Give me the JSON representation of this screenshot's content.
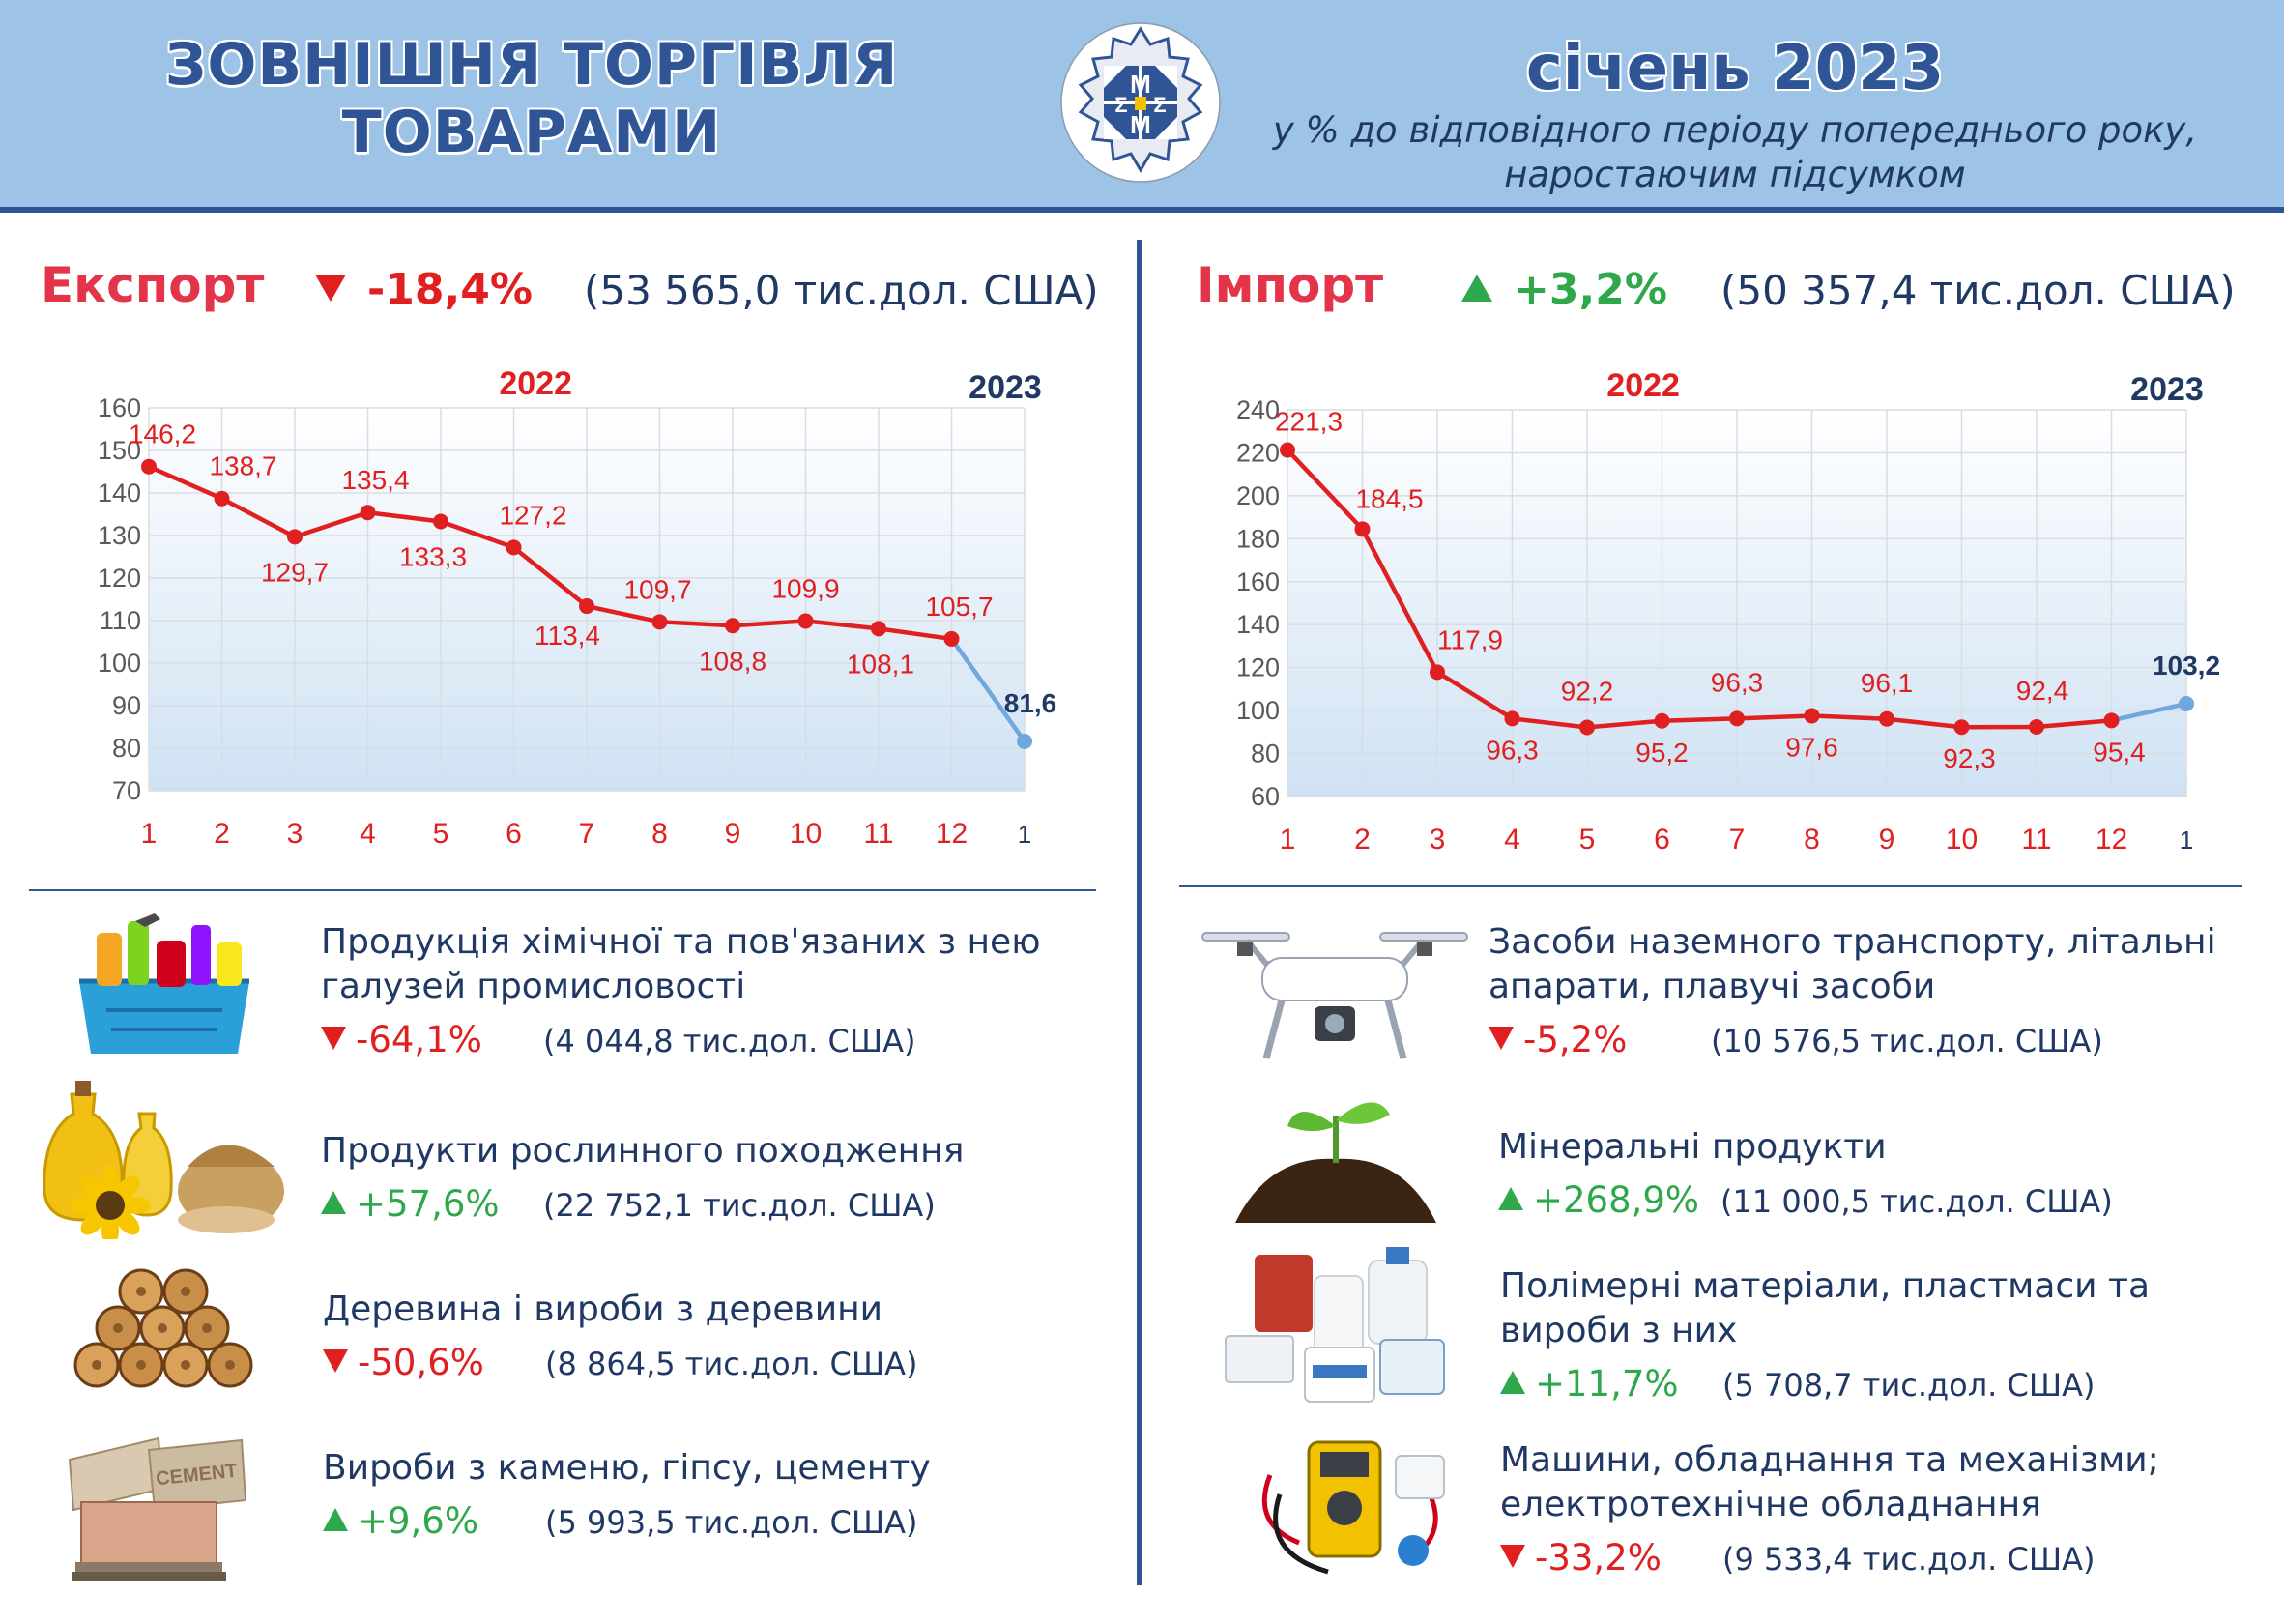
{
  "header": {
    "title_line1": "ЗОВНІШНЯ ТОРГІВЛЯ",
    "title_line2": "ТОВАРАМИ",
    "period": "січень 2023",
    "subtitle_line1": "у % до відповідного періоду попереднього року,",
    "subtitle_line2": "наростаючим підсумком",
    "logo_letters": [
      "М",
      "Σ",
      "Σ",
      "М"
    ],
    "colors": {
      "band": "#9dc3e6",
      "title": "#2f5597",
      "rule": "#2e5597"
    }
  },
  "export": {
    "title": "Експорт",
    "change": "-18,4%",
    "direction": "down",
    "total": "(53 565,0 тис.дол. США)"
  },
  "import": {
    "title": "Імпорт",
    "change": "+3,2%",
    "direction": "up",
    "total": "(50 357,4 тис.дол. США)"
  },
  "chart_data": [
    {
      "type": "line",
      "id": "export",
      "year_labels": [
        "2022",
        "2023"
      ],
      "x": [
        "1",
        "2",
        "3",
        "4",
        "5",
        "6",
        "7",
        "8",
        "9",
        "10",
        "11",
        "12",
        "1"
      ],
      "values": [
        146.2,
        138.7,
        129.7,
        135.4,
        133.3,
        127.2,
        113.4,
        109.7,
        108.8,
        109.9,
        108.1,
        105.7,
        81.6
      ],
      "labels": [
        "146,2",
        "138,7",
        "129,7",
        "135,4",
        "133,3",
        "127,2",
        "113,4",
        "109,7",
        "108,8",
        "109,9",
        "108,1",
        "105,7",
        "81,6"
      ],
      "ylim": [
        70,
        160
      ],
      "yticks": [
        70,
        80,
        90,
        100,
        110,
        120,
        130,
        140,
        150,
        160
      ],
      "grid": true,
      "colors": {
        "2022": "#e02020",
        "2023": "#6fa8dc",
        "label_2023": "#1f3864"
      }
    },
    {
      "type": "line",
      "id": "import",
      "year_labels": [
        "2022",
        "2023"
      ],
      "x": [
        "1",
        "2",
        "3",
        "4",
        "5",
        "6",
        "7",
        "8",
        "9",
        "10",
        "11",
        "12",
        "1"
      ],
      "values": [
        221.3,
        184.5,
        117.9,
        96.3,
        92.2,
        95.2,
        96.3,
        97.6,
        96.1,
        92.3,
        92.4,
        95.4,
        103.2
      ],
      "labels": [
        "221,3",
        "184,5",
        "117,9",
        "96,3",
        "92,2",
        "95,2",
        "96,3",
        "97,6",
        "96,1",
        "92,3",
        "92,4",
        "95,4",
        "103,2"
      ],
      "ylim": [
        60,
        240
      ],
      "yticks": [
        60,
        80,
        100,
        120,
        140,
        160,
        180,
        200,
        220,
        240
      ],
      "grid": true,
      "colors": {
        "2022": "#e02020",
        "2023": "#6fa8dc",
        "label_2023": "#1f3864"
      }
    }
  ],
  "export_items": [
    {
      "name_line1": "Продукція хімічної та пов'язаних з нею",
      "name_line2": "галузей промисловості",
      "change": "-64,1%",
      "direction": "down",
      "total": "(4 044,8 тис.дол. США)",
      "icon": "cleaning-products-icon"
    },
    {
      "name_line1": "Продукти рослинного походження",
      "name_line2": "",
      "change": "+57,6%",
      "direction": "up",
      "total": "(22 752,1 тис.дол. США)",
      "icon": "sunflower-oil-grain-icon"
    },
    {
      "name_line1": "Деревина і вироби з деревини",
      "name_line2": "",
      "change": "-50,6%",
      "direction": "down",
      "total": "(8 864,5 тис.дол. США)",
      "icon": "firewood-icon"
    },
    {
      "name_line1": "Вироби з каменю, гіпсу, цементу",
      "name_line2": "",
      "change": "+9,6%",
      "direction": "up",
      "total": "(5 993,5 тис.дол. США)",
      "icon": "cement-bags-icon",
      "icon_text": "CEMENT"
    }
  ],
  "import_items": [
    {
      "name_line1": "Засоби наземного транспорту, літальні",
      "name_line2": "апарати, плавучі засоби",
      "change": "-5,2%",
      "direction": "down",
      "total": "(10 576,5 тис.дол. США)",
      "icon": "drone-icon"
    },
    {
      "name_line1": "Мінеральні продукти",
      "name_line2": "",
      "change": "+268,9%",
      "direction": "up",
      "total": "(11 000,5 тис.дол. США)",
      "icon": "sprout-soil-icon"
    },
    {
      "name_line1": "Полімерні матеріали, пластмаси та",
      "name_line2": "вироби з них",
      "change": "+11,7%",
      "direction": "up",
      "total": "(5 708,7 тис.дол. США)",
      "icon": "plastic-containers-icon"
    },
    {
      "name_line1": "Машини, обладнання та механізми;",
      "name_line2": "електротехнічне обладнання",
      "change": "-33,2%",
      "direction": "down",
      "total": "(9 533,4 тис.дол. США)",
      "icon": "multimeter-tools-icon"
    }
  ]
}
